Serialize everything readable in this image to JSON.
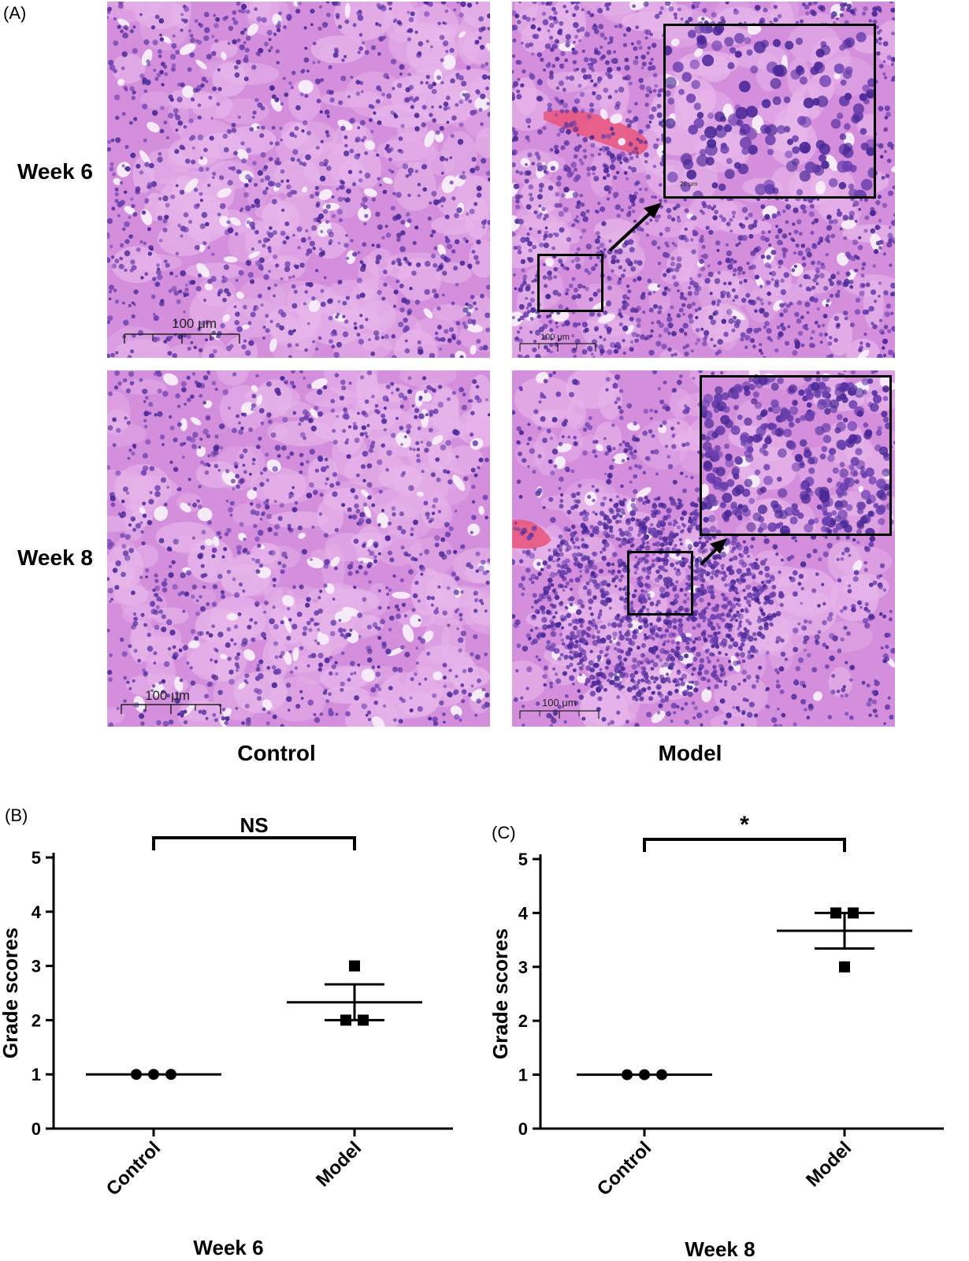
{
  "figure": {
    "panel_a_letter": "(A)",
    "rows": [
      "Week 6",
      "Week 8"
    ],
    "columns": [
      "Control",
      "Model"
    ],
    "scale_bar_label": "100 μm",
    "inset_scale_label": "20 μm",
    "colors": {
      "tissue_base": "#d48fdc",
      "tissue_light": "#e7b6ea",
      "nucleus": "#6a3fae",
      "nucleus_dark": "#4a2896",
      "lumen": "#f6eaf8",
      "blood": "#e8557a"
    }
  },
  "chart_data": [
    {
      "panel_letter": "(B)",
      "type": "scatter",
      "categories": [
        "Control",
        "Model"
      ],
      "xlabel": "Week 6",
      "ylabel": "Grade scores",
      "ylim": [
        0,
        5
      ],
      "yticks": [
        "0",
        "1",
        "2",
        "3",
        "4",
        "5"
      ],
      "significance": "NS",
      "series": [
        {
          "category": "Control",
          "marker": "circle",
          "points": [
            1,
            1,
            1
          ],
          "mean": 1.0,
          "sem": 0.0
        },
        {
          "category": "Model",
          "marker": "square",
          "points": [
            3,
            2,
            2
          ],
          "mean": 2.33,
          "sem": 0.33
        }
      ]
    },
    {
      "panel_letter": "(C)",
      "type": "scatter",
      "categories": [
        "Control",
        "Model"
      ],
      "xlabel": "Week 8",
      "ylabel": "Grade scores",
      "ylim": [
        0,
        5
      ],
      "yticks": [
        "0",
        "1",
        "2",
        "3",
        "4",
        "5"
      ],
      "significance": "*",
      "series": [
        {
          "category": "Control",
          "marker": "circle",
          "points": [
            1,
            1,
            1
          ],
          "mean": 1.0,
          "sem": 0.0
        },
        {
          "category": "Model",
          "marker": "square",
          "points": [
            4,
            4,
            3
          ],
          "mean": 3.67,
          "sem": 0.33
        }
      ]
    }
  ]
}
